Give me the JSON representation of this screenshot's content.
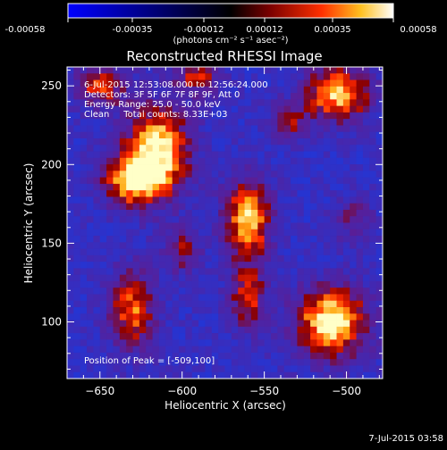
{
  "colorbar": {
    "ticks": [
      "-0.00058",
      "-0.00035",
      "-0.00012",
      "0.00012",
      "0.00035",
      "0.00058"
    ],
    "unit_label": "(photons cm⁻² s⁻¹ asec⁻²)",
    "range": [
      -0.00058,
      0.00058
    ]
  },
  "chart_data": {
    "type": "heatmap",
    "title": "Reconstructed RHESSI Image",
    "xlabel": "Heliocentric X (arcsec)",
    "ylabel": "Heliocentric Y (arcsec)",
    "xlim": [
      -670,
      -478
    ],
    "ylim": [
      64,
      262
    ],
    "x_ticks": [
      -650,
      -600,
      -550,
      -500
    ],
    "y_ticks": [
      100,
      150,
      200,
      250
    ],
    "annotations": [
      "6-Jul-2015 12:53:08.000 to 12:56:24.000",
      "Detectors: 3F 5F 6F 7F 8F 9F, Att 0",
      "Energy Range: 25.0 - 50.0 keV",
      "Clean     Total counts: 8.33E+03"
    ],
    "peak_text": "Position of Peak = [-509,100]",
    "sources": [
      {
        "x": -615,
        "y": 208,
        "sx": 14,
        "sy": 20,
        "amp": 1.0
      },
      {
        "x": -632,
        "y": 190,
        "sx": 12,
        "sy": 12,
        "amp": 0.75
      },
      {
        "x": -560,
        "y": 165,
        "sx": 10,
        "sy": 18,
        "amp": 0.9
      },
      {
        "x": -509,
        "y": 100,
        "sx": 16,
        "sy": 16,
        "amp": 1.0
      },
      {
        "x": -505,
        "y": 245,
        "sx": 14,
        "sy": 12,
        "amp": 0.9
      },
      {
        "x": -630,
        "y": 108,
        "sx": 10,
        "sy": 18,
        "amp": 0.7
      },
      {
        "x": -560,
        "y": 115,
        "sx": 8,
        "sy": 14,
        "amp": 0.6
      },
      {
        "x": -650,
        "y": 250,
        "sx": 12,
        "sy": 10,
        "amp": 0.6
      },
      {
        "x": -590,
        "y": 255,
        "sx": 10,
        "sy": 8,
        "amp": 0.55
      },
      {
        "x": -535,
        "y": 228,
        "sx": 8,
        "sy": 8,
        "amp": 0.5
      },
      {
        "x": -600,
        "y": 145,
        "sx": 8,
        "sy": 10,
        "amp": 0.45
      },
      {
        "x": -495,
        "y": 165,
        "sx": 8,
        "sy": 10,
        "amp": 0.4
      }
    ],
    "grid": false
  },
  "footer": {
    "timestamp": "7-Jul-2015 03:58"
  }
}
